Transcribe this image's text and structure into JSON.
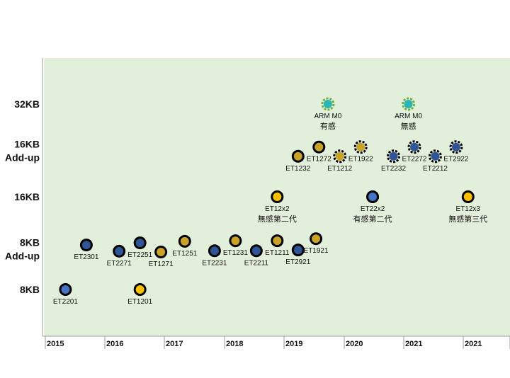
{
  "chart_data": {
    "type": "scatter",
    "title": "",
    "xlabel": "",
    "ylabel": "",
    "y_categories": [
      "8KB",
      "8KB\nAdd-up",
      "16KB",
      "16KB\nAdd-up",
      "32KB"
    ],
    "x_tick_labels": [
      "2015",
      "2016",
      "2017",
      "2018",
      "2019",
      "2020",
      "2021",
      "2021"
    ],
    "grid": false,
    "colors": {
      "plot_background": "#e2efda",
      "blue": "#4472c4",
      "blue_dark": "#2f5597",
      "gold": "#c9a227",
      "yellow": "#ffc000",
      "teal": "#2ab5b2",
      "green": "#70ad47",
      "outline": "#000000"
    },
    "points": [
      {
        "label": "ET2201",
        "x": 2015.1,
        "y": 0,
        "color": "blue",
        "style": "solid"
      },
      {
        "label": "ET2301",
        "x": 2015.45,
        "y": 1.08,
        "color": "blue_dark",
        "style": "solid"
      },
      {
        "label": "ET2271",
        "x": 2016.0,
        "y": 0.95,
        "color": "blue_dark",
        "style": "solid"
      },
      {
        "label": "ET2251",
        "x": 2016.35,
        "y": 1.12,
        "color": "blue_dark",
        "style": "solid"
      },
      {
        "label": "ET1201",
        "x": 2016.35,
        "y": 0,
        "color": "yellow",
        "style": "solid"
      },
      {
        "label": "ET1271",
        "x": 2016.7,
        "y": 0.93,
        "color": "gold",
        "style": "solid"
      },
      {
        "label": "ET1251",
        "x": 2017.1,
        "y": 1.15,
        "color": "gold",
        "style": "solid"
      },
      {
        "label": "ET2231",
        "x": 2017.6,
        "y": 0.96,
        "color": "blue_dark",
        "style": "solid"
      },
      {
        "label": "ET1231",
        "x": 2017.95,
        "y": 1.16,
        "color": "gold",
        "style": "solid"
      },
      {
        "label": "ET2211",
        "x": 2018.3,
        "y": 0.96,
        "color": "blue_dark",
        "style": "solid"
      },
      {
        "label": "ET1211",
        "x": 2018.65,
        "y": 1.16,
        "color": "gold",
        "style": "solid"
      },
      {
        "label": "ET2921",
        "x": 2019.0,
        "y": 0.98,
        "color": "blue_dark",
        "style": "solid"
      },
      {
        "label": "ET1921",
        "x": 2019.3,
        "y": 1.2,
        "color": "gold",
        "style": "solid"
      },
      {
        "label": "ET12x2",
        "sublabel": "無感第二代",
        "x": 2018.65,
        "y": 2.0,
        "color": "yellow",
        "style": "solid"
      },
      {
        "label": "ET1232",
        "x": 2019.0,
        "y": 2.88,
        "color": "gold",
        "style": "solid"
      },
      {
        "label": "ET1272",
        "x": 2019.35,
        "y": 3.08,
        "color": "gold",
        "style": "solid"
      },
      {
        "label": "ET1212",
        "x": 2019.7,
        "y": 2.88,
        "color": "gold",
        "style": "dashed"
      },
      {
        "label": "ET1922",
        "x": 2020.05,
        "y": 3.08,
        "color": "gold",
        "style": "dashed"
      },
      {
        "label": "ARM M0",
        "sublabel": "有感",
        "x": 2019.5,
        "y": 4.0,
        "color": "teal",
        "style": "dashed_green"
      },
      {
        "label": "ET22x2",
        "sublabel": "有感第二代",
        "x": 2020.25,
        "y": 2.0,
        "color": "blue",
        "style": "solid"
      },
      {
        "label": "ET2232",
        "x": 2020.6,
        "y": 2.88,
        "color": "blue_dark",
        "style": "dashed"
      },
      {
        "label": "ET2272",
        "x": 2020.95,
        "y": 3.08,
        "color": "blue_dark",
        "style": "dashed"
      },
      {
        "label": "ARM M0",
        "sublabel": "無感",
        "x": 2020.85,
        "y": 4.0,
        "color": "teal",
        "style": "dashed_green"
      },
      {
        "label": "ET2212",
        "x": 2021.3,
        "y": 2.88,
        "color": "blue_dark",
        "style": "dashed"
      },
      {
        "label": "ET2922",
        "x": 2021.65,
        "y": 3.08,
        "color": "blue_dark",
        "style": "dashed"
      },
      {
        "label": "ET12x3",
        "sublabel": "無感第三代",
        "x": 2021.85,
        "y": 2.0,
        "color": "yellow",
        "style": "solid"
      }
    ]
  }
}
